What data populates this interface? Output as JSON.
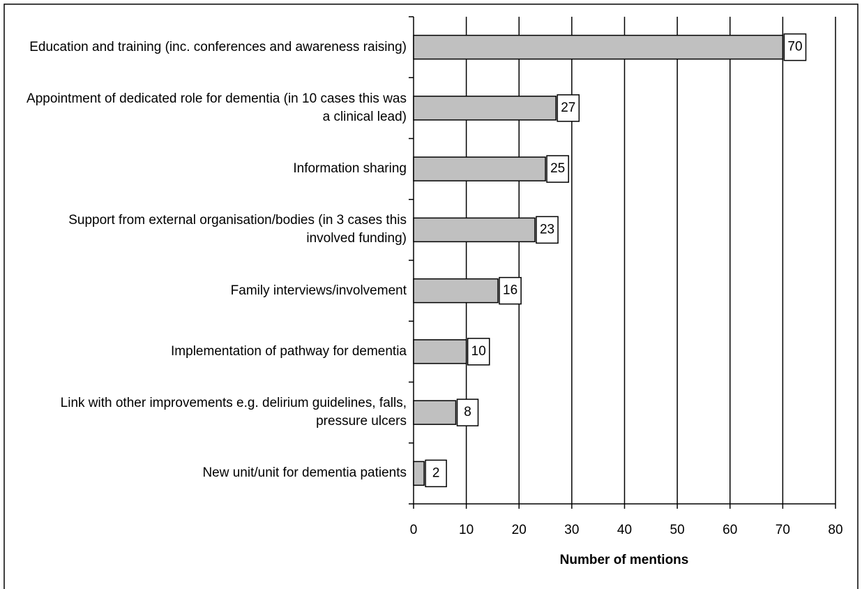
{
  "chart_data": {
    "type": "barh",
    "categories": [
      "Education and training (inc. conferences and awareness raising)",
      "Appointment of dedicated role for dementia (in 10 cases this was a clinical lead)",
      "Information sharing",
      "Support from external organisation/bodies (in 3 cases this involved funding)",
      "Family interviews/involvement",
      "Implementation of pathway for dementia",
      "Link with other improvements e.g. delirium guidelines, falls, pressure ulcers",
      "New unit/unit for dementia patients"
    ],
    "values": [
      70,
      27,
      25,
      23,
      16,
      10,
      8,
      2
    ],
    "color": "#c0c0c0",
    "xlabel": "Number of mentions",
    "xlim": [
      0,
      80
    ],
    "xticks": [
      0,
      10,
      20,
      30,
      40,
      50,
      60,
      70,
      80
    ],
    "grid": true
  }
}
